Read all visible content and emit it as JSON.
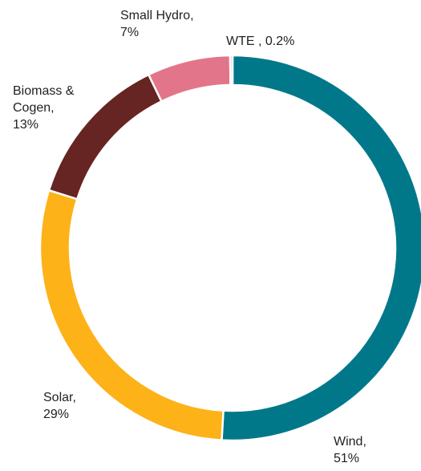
{
  "chart_data": {
    "type": "pie",
    "donut": true,
    "legend": "none",
    "start": "top",
    "direction": "clockwise",
    "categories": [
      "Wind",
      "Solar",
      "Biomass & Cogen",
      "Small Hydro",
      "WTE"
    ],
    "values": [
      51,
      29,
      13,
      7,
      0.2
    ],
    "unit": "%",
    "colors": [
      "#00788a",
      "#fdb218",
      "#662422",
      "#e3758a",
      "#f2a7b5"
    ],
    "data_labels": [
      [
        "Wind,",
        "51%"
      ],
      [
        "Solar,",
        "29%"
      ],
      [
        "Biomass &",
        "Cogen,",
        "13%"
      ],
      [
        "Small Hydro,",
        "7%"
      ],
      [
        "WTE , 0.2%"
      ]
    ]
  }
}
